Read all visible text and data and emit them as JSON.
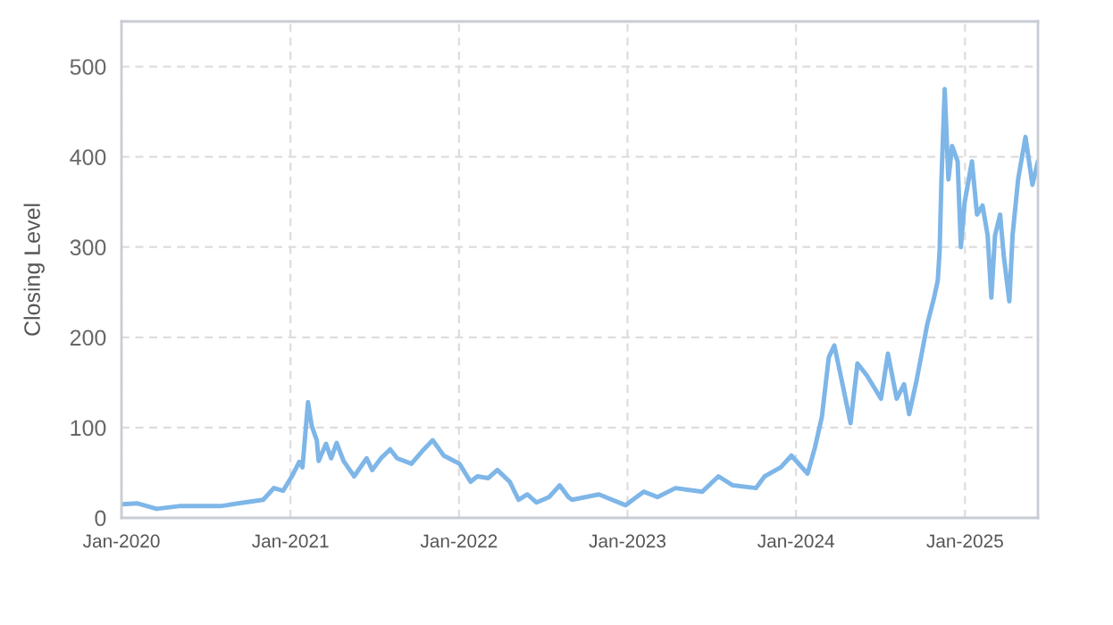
{
  "chart_data": {
    "type": "line",
    "ylabel": "Closing Level",
    "x": [
      "2020-01-02",
      "2020-02-05",
      "2020-03-17",
      "2020-05-05",
      "2020-08-02",
      "2020-09-10",
      "2020-11-03",
      "2020-11-26",
      "2020-12-16",
      "2021-01-04",
      "2021-01-20",
      "2021-01-27",
      "2021-02-08",
      "2021-02-16",
      "2021-02-27",
      "2021-03-03",
      "2021-03-19",
      "2021-03-30",
      "2021-04-11",
      "2021-04-26",
      "2021-05-19",
      "2021-06-15",
      "2021-06-27",
      "2021-07-16",
      "2021-08-05",
      "2021-08-20",
      "2021-09-20",
      "2021-10-17",
      "2021-11-05",
      "2021-11-29",
      "2022-01-02",
      "2022-01-26",
      "2022-02-10",
      "2022-03-05",
      "2022-03-25",
      "2022-04-21",
      "2022-05-10",
      "2022-05-29",
      "2022-06-18",
      "2022-07-15",
      "2022-08-07",
      "2022-08-26",
      "2022-09-03",
      "2022-10-31",
      "2022-12-28",
      "2023-02-05",
      "2023-03-07",
      "2023-04-15",
      "2023-06-12",
      "2023-07-17",
      "2023-08-17",
      "2023-10-06",
      "2023-10-25",
      "2023-11-29",
      "2023-12-22",
      "2024-01-26",
      "2024-02-11",
      "2024-02-26",
      "2024-03-12",
      "2024-03-24",
      "2024-04-09",
      "2024-04-28",
      "2024-05-13",
      "2024-06-02",
      "2024-07-03",
      "2024-07-18",
      "2024-08-06",
      "2024-08-22",
      "2024-09-02",
      "2024-09-18",
      "2024-10-11",
      "2024-10-26",
      "2024-11-03",
      "2024-11-07",
      "2024-11-11",
      "2024-11-18",
      "2024-11-26",
      "2024-12-04",
      "2024-12-16",
      "2024-12-23",
      "2024-12-31",
      "2025-01-16",
      "2025-01-27",
      "2025-02-08",
      "2025-02-19",
      "2025-02-27",
      "2025-03-07",
      "2025-03-18",
      "2025-03-26",
      "2025-04-07",
      "2025-04-14",
      "2025-04-26",
      "2025-05-12",
      "2025-05-27",
      "2025-06-08"
    ],
    "series": [
      {
        "color": "#7eb6e8",
        "values": [
          15,
          16,
          10,
          13,
          13,
          16,
          20,
          33,
          30,
          46,
          62,
          56,
          128,
          102,
          86,
          63,
          82,
          66,
          83,
          63,
          46,
          66,
          53,
          66,
          76,
          66,
          60,
          76,
          86,
          69,
          60,
          40,
          46,
          44,
          53,
          40,
          20,
          26,
          17,
          23,
          36,
          23,
          20,
          26,
          14,
          29,
          23,
          33,
          29,
          46,
          36,
          33,
          46,
          56,
          69,
          49,
          78,
          112,
          178,
          191,
          152,
          105,
          171,
          158,
          132,
          182,
          132,
          148,
          115,
          152,
          214,
          244,
          263,
          296,
          375,
          475,
          375,
          412,
          395,
          300,
          349,
          395,
          336,
          346,
          313,
          244,
          313,
          336,
          290,
          240,
          313,
          375,
          422,
          369,
          395
        ]
      }
    ],
    "xlim": [
      "2020-01-01",
      "2025-06-08"
    ],
    "xticks": [
      {
        "value": "2020-01-01",
        "label": "Jan-2020"
      },
      {
        "value": "2021-01-01",
        "label": "Jan-2021"
      },
      {
        "value": "2022-01-01",
        "label": "Jan-2022"
      },
      {
        "value": "2023-01-01",
        "label": "Jan-2023"
      },
      {
        "value": "2024-01-01",
        "label": "Jan-2024"
      },
      {
        "value": "2025-01-01",
        "label": "Jan-2025"
      }
    ],
    "ylim": [
      0,
      550
    ],
    "yticks": [
      0,
      100,
      200,
      300,
      400,
      500
    ],
    "grid": true,
    "line_style": "solid",
    "marker": "none",
    "legend": false
  }
}
